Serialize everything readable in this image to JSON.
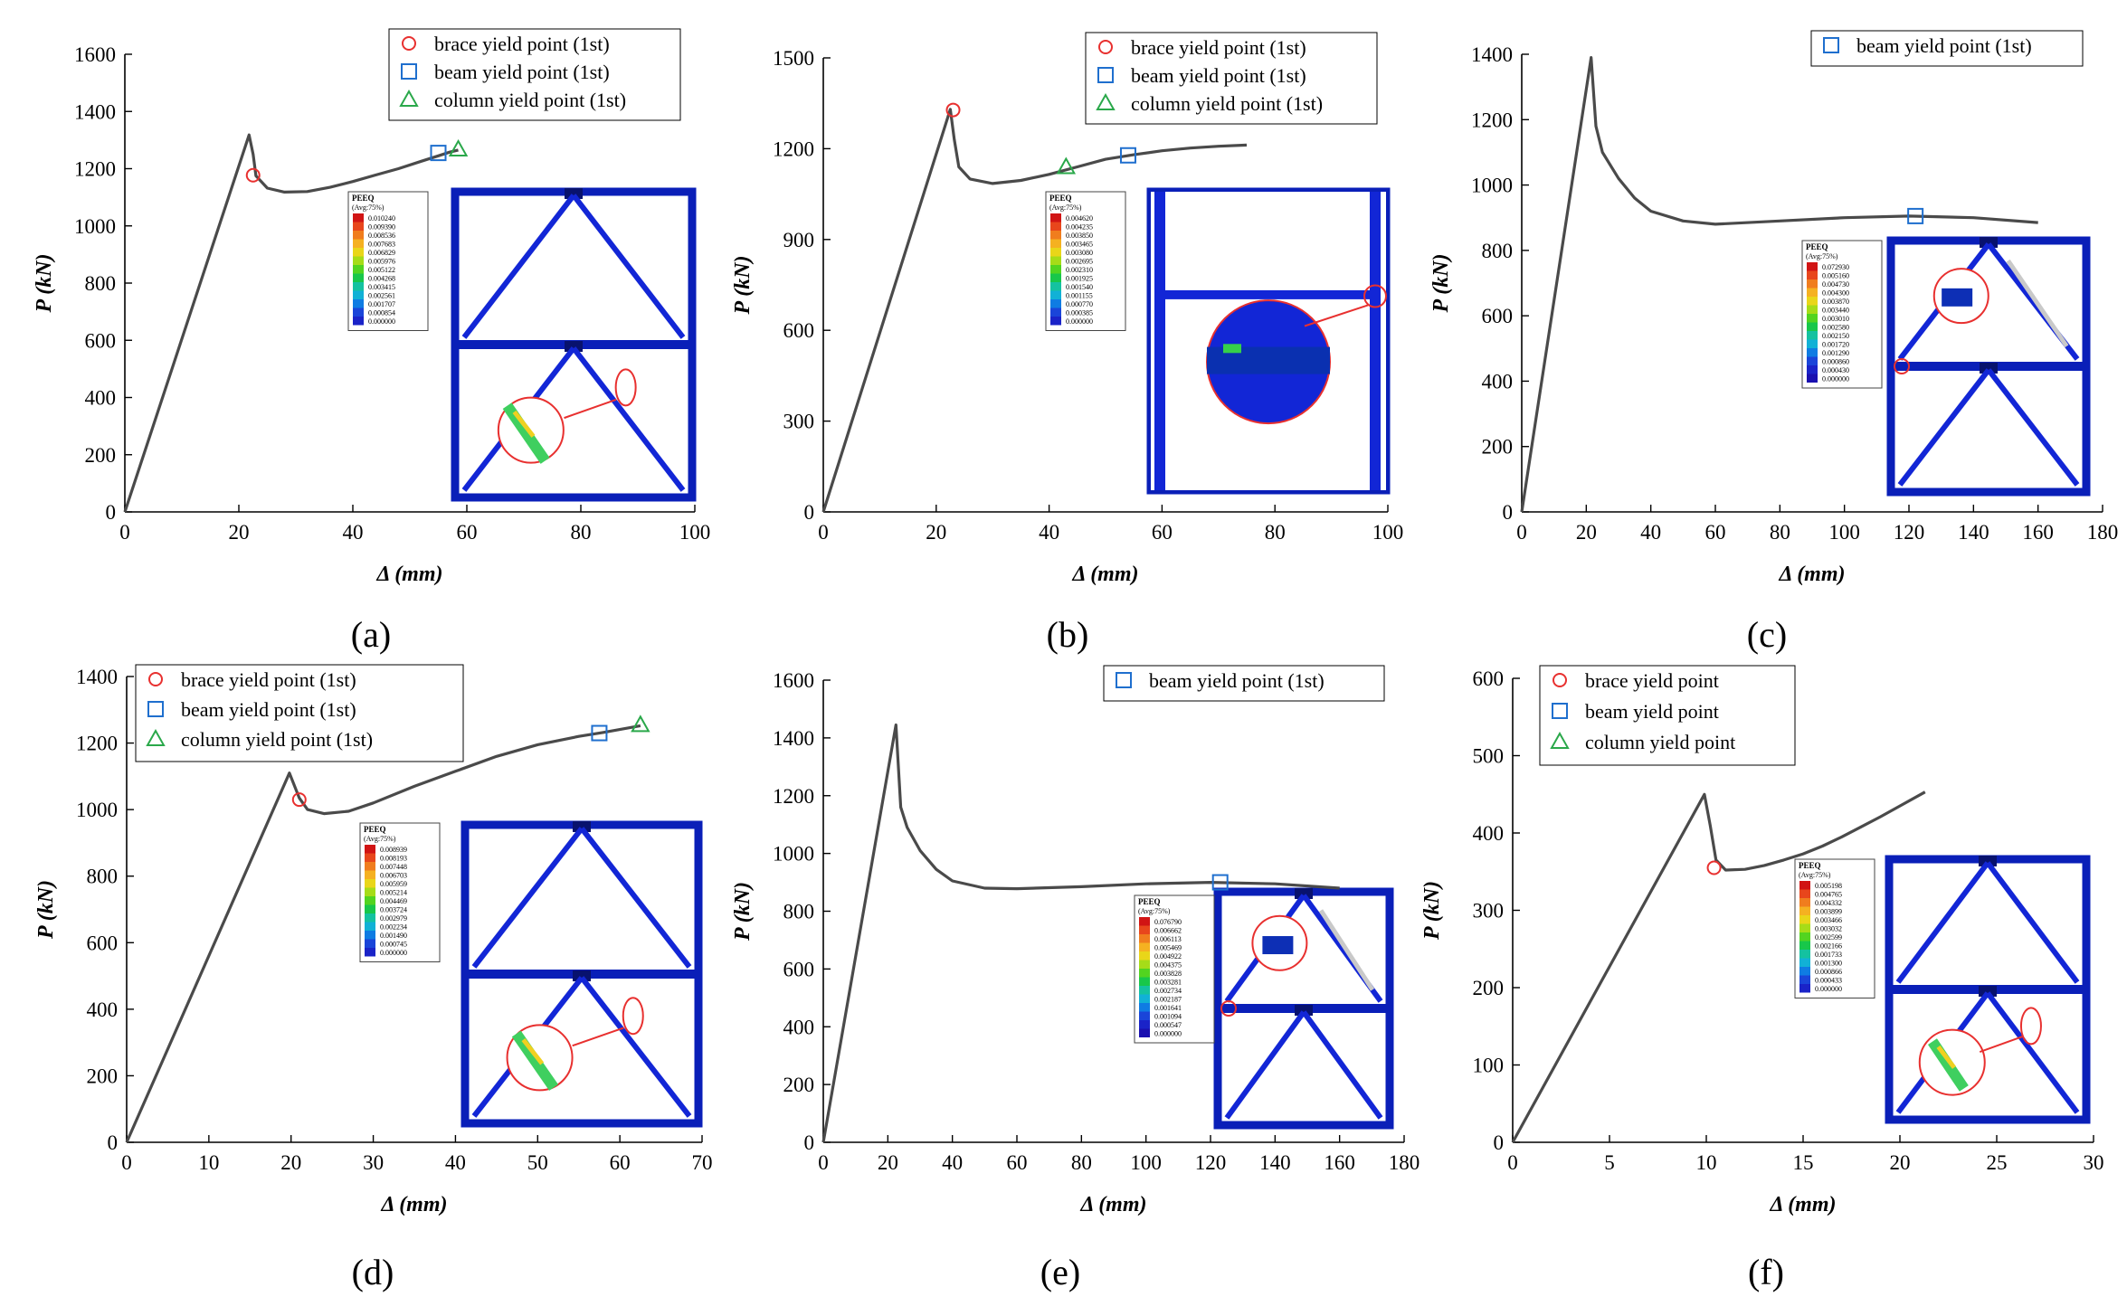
{
  "figure": {
    "panels": [
      {
        "label": "(a)",
        "title": "",
        "ylabel": "P (kN)",
        "xlabel": "Δ (mm)",
        "legend": [
          "brace yield point (1st)",
          "beam yield point (1st)",
          "column yield point (1st)"
        ],
        "contour": {
          "title": "PEEQ",
          "subtitle": "(Avg:75%)",
          "values": [
            "0.010240",
            "0.009390",
            "0.008536",
            "0.007683",
            "0.006829",
            "0.005976",
            "0.005122",
            "0.004268",
            "0.003415",
            "0.002561",
            "0.001707",
            "0.000854",
            "0.000000"
          ]
        }
      },
      {
        "label": "(b)",
        "title": "",
        "ylabel": "P (kN)",
        "xlabel": "Δ (mm)",
        "legend": [
          "brace yield point (1st)",
          "beam yield point (1st)",
          "column yield point (1st)"
        ],
        "contour": {
          "title": "PEEQ",
          "subtitle": "(Avg:75%)",
          "values": [
            "0.004620",
            "0.004235",
            "0.003850",
            "0.003465",
            "0.003080",
            "0.002695",
            "0.002310",
            "0.001925",
            "0.001540",
            "0.001155",
            "0.000770",
            "0.000385",
            "0.000000"
          ]
        }
      },
      {
        "label": "(c)",
        "title": "",
        "ylabel": "P (kN)",
        "xlabel": "Δ (mm)",
        "legend": [
          "beam yield point (1st)"
        ],
        "contour": {
          "title": "PEEQ",
          "subtitle": "(Avg:75%)",
          "values": [
            "0.072930",
            "0.005160",
            "0.004730",
            "0.004300",
            "0.003870",
            "0.003440",
            "0.003010",
            "0.002580",
            "0.002150",
            "0.001720",
            "0.001290",
            "0.000860",
            "0.000430",
            "0.000000"
          ]
        }
      },
      {
        "label": "(d)",
        "title": "",
        "ylabel": "P (kN)",
        "xlabel": "Δ (mm)",
        "legend": [
          "brace yield point (1st)",
          "beam yield point (1st)",
          "column yield point (1st)"
        ],
        "contour": {
          "title": "PEEQ",
          "subtitle": "(Avg:75%)",
          "values": [
            "0.008939",
            "0.008193",
            "0.007448",
            "0.006703",
            "0.005959",
            "0.005214",
            "0.004469",
            "0.003724",
            "0.002979",
            "0.002234",
            "0.001490",
            "0.000745",
            "0.000000"
          ]
        }
      },
      {
        "label": "(e)",
        "title": "",
        "ylabel": "P (kN)",
        "xlabel": "Δ (mm)",
        "legend": [
          "beam yield point (1st)"
        ],
        "contour": {
          "title": "PEEQ",
          "subtitle": "(Avg:75%)",
          "values": [
            "0.076790",
            "0.006662",
            "0.006113",
            "0.005469",
            "0.004922",
            "0.004375",
            "0.003828",
            "0.003281",
            "0.002734",
            "0.002187",
            "0.001641",
            "0.001094",
            "0.000547",
            "0.000000"
          ]
        }
      },
      {
        "label": "(f)",
        "title": "",
        "ylabel": "P (kN)",
        "xlabel": "Δ (mm)",
        "legend": [
          "brace yield point",
          "beam yield point",
          "column yield point"
        ],
        "contour": {
          "title": "PEEQ",
          "subtitle": "(Avg:75%)",
          "values": [
            "0.005198",
            "0.004765",
            "0.004332",
            "0.003899",
            "0.003466",
            "0.003032",
            "0.002599",
            "0.002166",
            "0.001733",
            "0.001300",
            "0.000866",
            "0.000433",
            "0.000000"
          ]
        }
      }
    ]
  },
  "chart_data": [
    {
      "type": "line",
      "title": "",
      "xlabel": "Δ (mm)",
      "ylabel": "P (kN)",
      "xlim": [
        0,
        100
      ],
      "ylim": [
        0,
        1600
      ],
      "xticks": [
        0,
        20,
        40,
        60,
        80,
        100
      ],
      "yticks": [
        0,
        200,
        400,
        600,
        800,
        1000,
        1200,
        1400,
        1600
      ],
      "x": [
        0,
        21.8,
        22.5,
        23,
        25,
        28,
        32,
        36,
        40,
        44,
        48,
        52,
        55,
        57,
        58.5
      ],
      "y": [
        0,
        1318,
        1250,
        1175,
        1132,
        1118,
        1120,
        1135,
        1155,
        1178,
        1200,
        1226,
        1245,
        1258,
        1265
      ],
      "markers": [
        {
          "series": "brace yield point (1st)",
          "shape": "circle",
          "color": "#e8302f",
          "x": 22.5,
          "y": 1177
        },
        {
          "series": "beam yield point (1st)",
          "shape": "square",
          "color": "#1f6fce",
          "x": 55,
          "y": 1255
        },
        {
          "series": "column yield point (1st)",
          "shape": "triangle",
          "color": "#2aa84a",
          "x": 58.5,
          "y": 1268
        }
      ]
    },
    {
      "type": "line",
      "title": "",
      "xlabel": "Δ (mm)",
      "ylabel": "P (kN)",
      "xlim": [
        0,
        100
      ],
      "ylim": [
        0,
        1500
      ],
      "xticks": [
        0,
        20,
        40,
        60,
        80,
        100
      ],
      "yticks": [
        0,
        300,
        600,
        900,
        1200,
        1500
      ],
      "x": [
        0,
        22.5,
        23.2,
        24,
        26,
        30,
        35,
        40,
        45,
        50,
        55,
        60,
        65,
        70,
        75
      ],
      "y": [
        0,
        1330,
        1230,
        1140,
        1100,
        1085,
        1095,
        1115,
        1140,
        1165,
        1180,
        1193,
        1202,
        1208,
        1212
      ],
      "markers": [
        {
          "series": "brace yield point (1st)",
          "shape": "circle",
          "color": "#e8302f",
          "x": 23,
          "y": 1328
        },
        {
          "series": "column yield point (1st)",
          "shape": "triangle",
          "color": "#2aa84a",
          "x": 43,
          "y": 1140
        },
        {
          "series": "beam yield point (1st)",
          "shape": "square",
          "color": "#1f6fce",
          "x": 54,
          "y": 1178
        }
      ]
    },
    {
      "type": "line",
      "title": "",
      "xlabel": "Δ (mm)",
      "ylabel": "P (kN)",
      "xlim": [
        0,
        180
      ],
      "ylim": [
        0,
        1400
      ],
      "xticks": [
        0,
        20,
        40,
        60,
        80,
        100,
        120,
        140,
        160,
        180
      ],
      "yticks": [
        0,
        200,
        400,
        600,
        800,
        1000,
        1200,
        1400
      ],
      "x": [
        0,
        21.5,
        23,
        25,
        30,
        35,
        40,
        50,
        60,
        80,
        100,
        120,
        140,
        160
      ],
      "y": [
        0,
        1390,
        1180,
        1100,
        1020,
        960,
        920,
        890,
        880,
        890,
        900,
        905,
        900,
        885
      ],
      "markers": [
        {
          "series": "beam yield point (1st)",
          "shape": "square",
          "color": "#1f6fce",
          "x": 122,
          "y": 905
        }
      ]
    },
    {
      "type": "line",
      "title": "",
      "xlabel": "Δ (mm)",
      "ylabel": "P (kN)",
      "xlim": [
        0,
        70
      ],
      "ylim": [
        0,
        1400
      ],
      "xticks": [
        0,
        10,
        20,
        30,
        40,
        50,
        60,
        70
      ],
      "yticks": [
        0,
        200,
        400,
        600,
        800,
        1000,
        1200,
        1400
      ],
      "x": [
        0,
        19.8,
        21,
        22,
        24,
        27,
        30,
        35,
        40,
        45,
        50,
        55,
        58,
        62.5
      ],
      "y": [
        0,
        1110,
        1035,
        1000,
        988,
        995,
        1020,
        1070,
        1115,
        1160,
        1195,
        1220,
        1232,
        1252
      ],
      "markers": [
        {
          "series": "brace yield point (1st)",
          "shape": "circle",
          "color": "#e8302f",
          "x": 21,
          "y": 1030
        },
        {
          "series": "beam yield point (1st)",
          "shape": "square",
          "color": "#1f6fce",
          "x": 57.5,
          "y": 1230
        },
        {
          "series": "column yield point (1st)",
          "shape": "triangle",
          "color": "#2aa84a",
          "x": 62.5,
          "y": 1255
        }
      ]
    },
    {
      "type": "line",
      "title": "",
      "xlabel": "Δ (mm)",
      "ylabel": "P (kN)",
      "xlim": [
        0,
        180
      ],
      "ylim": [
        0,
        1600
      ],
      "xticks": [
        0,
        20,
        40,
        60,
        80,
        100,
        120,
        140,
        160,
        180
      ],
      "yticks": [
        0,
        200,
        400,
        600,
        800,
        1000,
        1200,
        1400,
        1600
      ],
      "x": [
        0,
        22.5,
        24,
        26,
        30,
        35,
        40,
        50,
        60,
        80,
        100,
        120,
        140,
        160
      ],
      "y": [
        0,
        1445,
        1160,
        1090,
        1010,
        945,
        905,
        880,
        878,
        885,
        895,
        900,
        895,
        880
      ],
      "markers": [
        {
          "series": "beam yield point (1st)",
          "shape": "square",
          "color": "#1f6fce",
          "x": 123,
          "y": 900
        }
      ]
    },
    {
      "type": "line",
      "title": "",
      "xlabel": "Δ (mm)",
      "ylabel": "P (kN)",
      "xlim": [
        0,
        30
      ],
      "ylim": [
        0,
        600
      ],
      "xticks": [
        0,
        5,
        10,
        15,
        20,
        25,
        30
      ],
      "yticks": [
        0,
        100,
        200,
        300,
        400,
        500,
        600
      ],
      "x": [
        0,
        9.9,
        10.2,
        10.5,
        11,
        12,
        13,
        14,
        15,
        16,
        17,
        18,
        19,
        20,
        21.3
      ],
      "y": [
        0,
        450,
        410,
        365,
        352,
        353,
        358,
        365,
        373,
        383,
        395,
        408,
        421,
        435,
        453
      ],
      "markers": [
        {
          "series": "brace yield point",
          "shape": "circle",
          "color": "#e8302f",
          "x": 10.4,
          "y": 355
        }
      ]
    }
  ]
}
